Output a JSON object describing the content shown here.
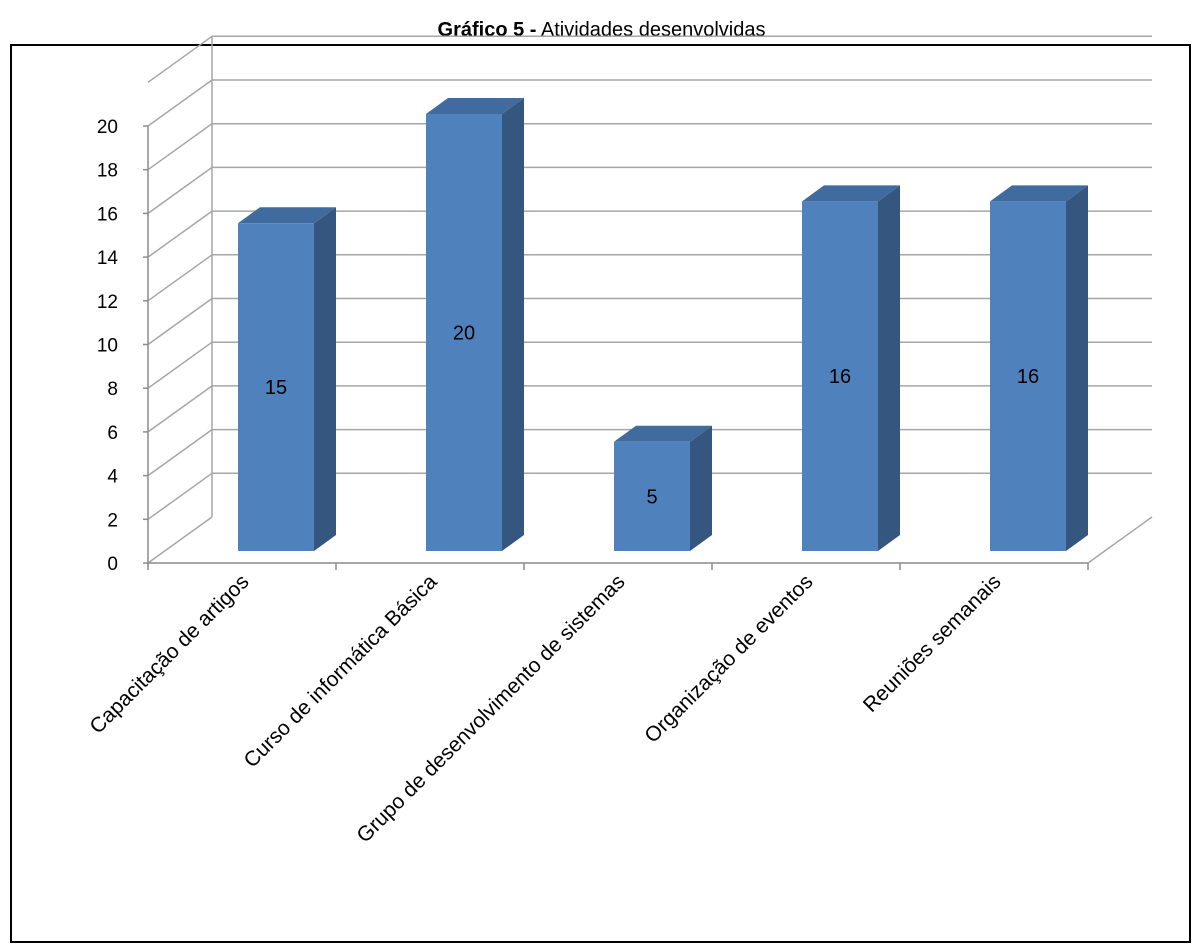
{
  "title": {
    "prefix": "Gráfico 5 -",
    "text": "Atividades desenvolvidas"
  },
  "chart_data": {
    "type": "bar",
    "style": "3d-column",
    "categories": [
      "Capacitação de artigos",
      "Curso de informática Básica",
      "Grupo de desenvolvimento de sistemas",
      "Organização de eventos",
      "Reuniões semanais"
    ],
    "values": [
      15,
      20,
      5,
      16,
      16
    ],
    "data_labels": [
      "15",
      "20",
      "5",
      "16",
      "16"
    ],
    "ylim": [
      0,
      20
    ],
    "yticks": [
      "0",
      "2",
      "4",
      "6",
      "8",
      "10",
      "12",
      "14",
      "16",
      "18",
      "20"
    ],
    "xlabel": "",
    "ylabel": "",
    "grid": true,
    "legend": "none",
    "colors": {
      "bar_front": "#4F81BD",
      "bar_side": "#34567F",
      "bar_top": "#3F6B9E",
      "grid": "#A6A6A6"
    }
  }
}
